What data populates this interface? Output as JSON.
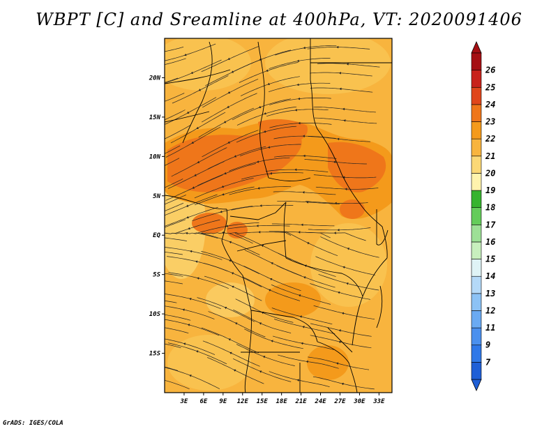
{
  "title": "WBPT [C] and Sreamline at 400hPa, VT: 2020091406",
  "credit": "GrADS: IGES/COLA",
  "map": {
    "lon_ticks": [
      "3E",
      "6E",
      "9E",
      "12E",
      "15E",
      "18E",
      "21E",
      "24E",
      "27E",
      "30E",
      "33E"
    ],
    "lat_ticks": [
      "20N",
      "15N",
      "10N",
      "5N",
      "EQ",
      "5S",
      "10S",
      "15S"
    ],
    "lon_range": [
      0,
      35
    ],
    "lat_range": [
      -20,
      25
    ]
  },
  "colorbar": {
    "labels": [
      "7",
      "9",
      "11",
      "12",
      "13",
      "14",
      "15",
      "16",
      "17",
      "18",
      "19",
      "20",
      "21",
      "22",
      "23",
      "24",
      "25",
      "26"
    ],
    "colors": [
      "#1f5fd6",
      "#2f78e8",
      "#4a90ee",
      "#6aaaf2",
      "#8cc2f5",
      "#b4d9f8",
      "#dff3f6",
      "#c8efbe",
      "#9de096",
      "#64cc5a",
      "#36b32e",
      "#fff3ad",
      "#fbd876",
      "#f8b43e",
      "#f49a1b",
      "#ef761a",
      "#e0461b",
      "#c8221b",
      "#a50f13"
    ],
    "low_color": "#1f5fd6",
    "high_color": "#a50f13"
  }
}
